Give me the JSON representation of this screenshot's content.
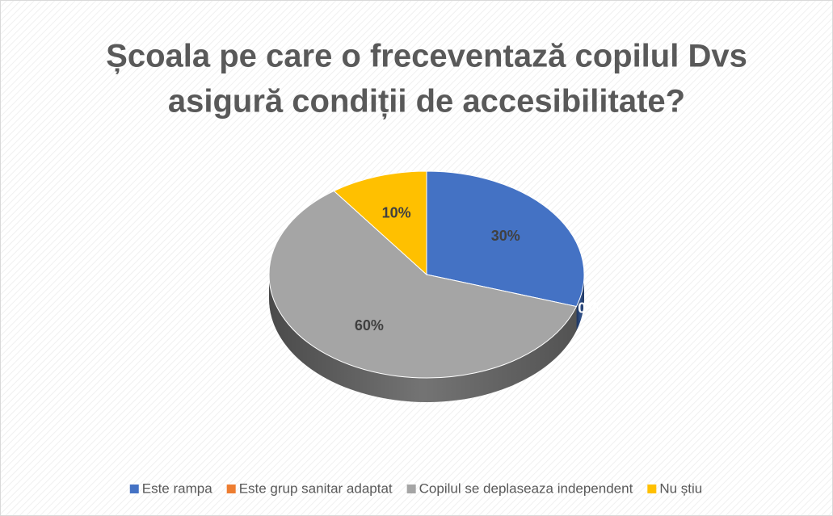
{
  "chart_data": {
    "type": "pie",
    "title": [
      "Școala pe care o freceventază copilul Dvs",
      "asigură condiții de accesibilitate?"
    ],
    "categories": [
      "Este rampa",
      "Este grup sanitar adaptat",
      "Copilul se deplaseaza independent",
      "Nu știu"
    ],
    "values": [
      30,
      0,
      60,
      10
    ],
    "value_labels": [
      "30%",
      "0%",
      "60%",
      "10%"
    ],
    "colors": [
      "#4472c4",
      "#ed7d31",
      "#a5a5a5",
      "#ffc000"
    ],
    "legend": "bottom"
  }
}
